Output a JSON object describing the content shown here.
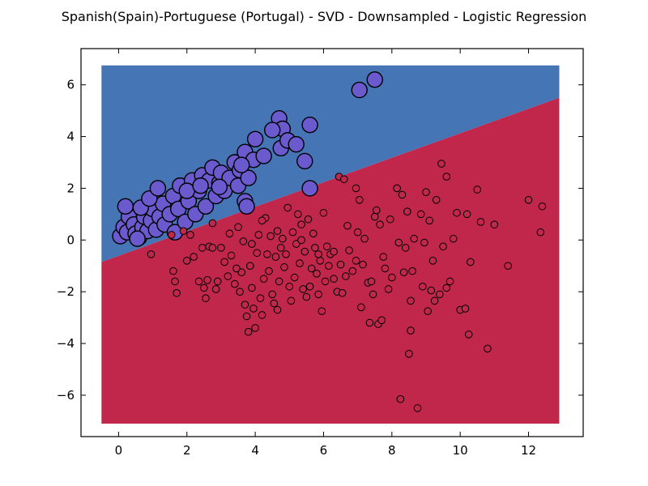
{
  "chart_data": {
    "type": "scatter",
    "title": "Spanish(Spain)-Portuguese (Portugal) - SVD - Downsampled - Logistic Regression",
    "xlabel": "",
    "ylabel": "",
    "xlim": [
      -1.1,
      13.6
    ],
    "ylim": [
      -7.6,
      7.4
    ],
    "xticks": [
      0,
      2,
      4,
      6,
      8,
      10,
      12
    ],
    "yticks": [
      -6,
      -4,
      -2,
      0,
      2,
      4,
      6
    ],
    "grid": false,
    "legend": "none",
    "decision_region": {
      "x_range": [
        -0.5,
        12.9
      ],
      "y_range": [
        -7.1,
        6.75
      ],
      "boundary": {
        "x1": -0.5,
        "y1": -0.85,
        "x2": 12.9,
        "y2": 5.5
      },
      "above_color": "#4575b4",
      "below_color": "#c1264b"
    },
    "series": [
      {
        "class": "portuguese",
        "color": "#6a5acd",
        "points": [
          [
            0.05,
            0.15
          ],
          [
            0.15,
            0.5
          ],
          [
            0.25,
            0.3
          ],
          [
            0.3,
            0.9
          ],
          [
            0.45,
            0.6
          ],
          [
            0.5,
            0.25
          ],
          [
            0.6,
            0.1
          ],
          [
            0.7,
            0.5
          ],
          [
            0.75,
            0.9
          ],
          [
            0.85,
            0.35
          ],
          [
            0.95,
            0.75
          ],
          [
            1.0,
            1.2
          ],
          [
            1.1,
            0.4
          ],
          [
            1.2,
            0.9
          ],
          [
            1.3,
            1.4
          ],
          [
            1.35,
            0.6
          ],
          [
            1.5,
            1.0
          ],
          [
            1.6,
            1.7
          ],
          [
            1.65,
            0.3
          ],
          [
            1.75,
            1.2
          ],
          [
            1.8,
            2.1
          ],
          [
            1.95,
            0.7
          ],
          [
            2.05,
            1.5
          ],
          [
            2.15,
            2.3
          ],
          [
            2.25,
            1.0
          ],
          [
            2.35,
            1.9
          ],
          [
            2.45,
            2.5
          ],
          [
            2.55,
            1.3
          ],
          [
            2.65,
            2.3
          ],
          [
            2.75,
            2.8
          ],
          [
            2.85,
            1.7
          ],
          [
            2.95,
            2.2
          ],
          [
            3.0,
            2.6
          ],
          [
            3.1,
            1.9
          ],
          [
            3.25,
            2.4
          ],
          [
            3.4,
            3.0
          ],
          [
            3.5,
            2.1
          ],
          [
            3.55,
            2.7
          ],
          [
            3.7,
            3.4
          ],
          [
            3.8,
            2.4
          ],
          [
            3.95,
            3.1
          ],
          [
            4.0,
            3.9
          ],
          [
            4.25,
            3.25
          ],
          [
            4.7,
            4.7
          ],
          [
            4.75,
            3.55
          ],
          [
            4.8,
            4.3
          ],
          [
            4.95,
            3.85
          ],
          [
            5.2,
            3.7
          ],
          [
            5.45,
            3.05
          ],
          [
            5.6,
            4.45
          ],
          [
            5.6,
            2.0
          ],
          [
            3.7,
            1.5
          ],
          [
            3.75,
            1.3
          ],
          [
            0.65,
            1.25
          ],
          [
            0.9,
            1.6
          ],
          [
            1.15,
            2.0
          ],
          [
            0.2,
            1.3
          ],
          [
            0.55,
            0.05
          ],
          [
            2.0,
            1.9
          ],
          [
            2.4,
            2.1
          ],
          [
            2.95,
            2.05
          ],
          [
            3.6,
            2.9
          ],
          [
            4.5,
            4.25
          ],
          [
            7.05,
            5.8
          ],
          [
            7.5,
            6.2
          ]
        ]
      },
      {
        "class": "spanish",
        "color": "#c1264b",
        "points": [
          [
            0.95,
            -0.55
          ],
          [
            1.55,
            0.2
          ],
          [
            1.6,
            -1.2
          ],
          [
            1.65,
            -1.6
          ],
          [
            1.7,
            -2.05
          ],
          [
            1.9,
            0.35
          ],
          [
            2.0,
            -0.8
          ],
          [
            2.1,
            0.2
          ],
          [
            2.2,
            -0.65
          ],
          [
            2.35,
            -1.6
          ],
          [
            2.45,
            -0.3
          ],
          [
            2.5,
            -1.85
          ],
          [
            2.55,
            -2.25
          ],
          [
            2.6,
            -1.55
          ],
          [
            2.65,
            -0.25
          ],
          [
            2.75,
            0.65
          ],
          [
            2.85,
            -1.9
          ],
          [
            2.9,
            -1.6
          ],
          [
            3.0,
            -0.3
          ],
          [
            3.1,
            -0.85
          ],
          [
            3.2,
            -1.4
          ],
          [
            3.3,
            -0.6
          ],
          [
            3.4,
            -1.7
          ],
          [
            3.5,
            0.5
          ],
          [
            3.55,
            -2.0
          ],
          [
            3.6,
            -1.25
          ],
          [
            3.65,
            -0.05
          ],
          [
            3.7,
            -2.5
          ],
          [
            3.75,
            -2.95
          ],
          [
            3.8,
            -3.55
          ],
          [
            3.85,
            -1.0
          ],
          [
            3.9,
            -0.15
          ],
          [
            3.95,
            -2.65
          ],
          [
            4.0,
            -3.4
          ],
          [
            4.05,
            -0.5
          ],
          [
            4.1,
            0.2
          ],
          [
            4.15,
            -2.25
          ],
          [
            4.2,
            -2.9
          ],
          [
            4.25,
            -1.5
          ],
          [
            4.3,
            0.85
          ],
          [
            4.35,
            -0.55
          ],
          [
            4.4,
            -1.2
          ],
          [
            4.45,
            0.15
          ],
          [
            4.5,
            -2.1
          ],
          [
            4.55,
            -2.45
          ],
          [
            4.6,
            -0.65
          ],
          [
            4.65,
            -2.7
          ],
          [
            4.7,
            -1.6
          ],
          [
            4.75,
            -0.3
          ],
          [
            4.8,
            0.05
          ],
          [
            4.85,
            -1.05
          ],
          [
            4.9,
            -0.55
          ],
          [
            4.95,
            1.25
          ],
          [
            5.0,
            -1.8
          ],
          [
            5.05,
            -2.35
          ],
          [
            5.1,
            0.3
          ],
          [
            5.15,
            -1.45
          ],
          [
            5.2,
            -0.15
          ],
          [
            5.25,
            1.0
          ],
          [
            5.3,
            -0.9
          ],
          [
            5.35,
            0.6
          ],
          [
            5.4,
            -1.9
          ],
          [
            5.45,
            -0.45
          ],
          [
            5.5,
            -2.2
          ],
          [
            5.55,
            0.8
          ],
          [
            5.6,
            -1.8
          ],
          [
            5.65,
            -1.1
          ],
          [
            5.7,
            0.25
          ],
          [
            5.75,
            -0.3
          ],
          [
            5.8,
            -1.3
          ],
          [
            5.85,
            -2.1
          ],
          [
            5.9,
            -0.8
          ],
          [
            5.95,
            -2.75
          ],
          [
            6.0,
            1.05
          ],
          [
            6.05,
            -1.6
          ],
          [
            6.1,
            -0.25
          ],
          [
            6.15,
            -1.0
          ],
          [
            6.2,
            -0.55
          ],
          [
            6.3,
            -1.5
          ],
          [
            6.4,
            -2.0
          ],
          [
            6.45,
            2.45
          ],
          [
            6.5,
            -0.95
          ],
          [
            6.55,
            -2.05
          ],
          [
            6.6,
            2.35
          ],
          [
            6.65,
            -1.4
          ],
          [
            6.7,
            0.55
          ],
          [
            6.75,
            -0.4
          ],
          [
            6.85,
            -1.2
          ],
          [
            6.95,
            -0.8
          ],
          [
            7.0,
            0.3
          ],
          [
            7.05,
            1.55
          ],
          [
            7.1,
            -2.6
          ],
          [
            7.15,
            -0.95
          ],
          [
            7.2,
            0.05
          ],
          [
            7.3,
            -1.65
          ],
          [
            7.35,
            -3.2
          ],
          [
            7.4,
            -1.6
          ],
          [
            7.45,
            -2.1
          ],
          [
            7.5,
            0.9
          ],
          [
            7.55,
            1.15
          ],
          [
            7.6,
            -3.25
          ],
          [
            7.65,
            0.6
          ],
          [
            7.7,
            -3.1
          ],
          [
            7.75,
            -0.65
          ],
          [
            7.8,
            -1.1
          ],
          [
            7.9,
            -1.9
          ],
          [
            8.0,
            -1.45
          ],
          [
            8.15,
            2.0
          ],
          [
            8.2,
            -0.1
          ],
          [
            8.25,
            -6.15
          ],
          [
            8.3,
            1.75
          ],
          [
            8.35,
            -1.25
          ],
          [
            8.4,
            -0.3
          ],
          [
            8.45,
            1.1
          ],
          [
            8.5,
            -4.4
          ],
          [
            8.55,
            -3.5
          ],
          [
            8.6,
            -1.2
          ],
          [
            8.65,
            0.05
          ],
          [
            8.75,
            -6.5
          ],
          [
            8.85,
            1.0
          ],
          [
            8.9,
            -1.8
          ],
          [
            8.95,
            -0.1
          ],
          [
            9.0,
            1.85
          ],
          [
            9.05,
            -2.75
          ],
          [
            9.1,
            0.75
          ],
          [
            9.15,
            -1.95
          ],
          [
            9.2,
            -0.8
          ],
          [
            9.3,
            1.55
          ],
          [
            9.4,
            -2.1
          ],
          [
            9.45,
            2.95
          ],
          [
            9.5,
            -0.25
          ],
          [
            9.6,
            2.45
          ],
          [
            9.7,
            -1.6
          ],
          [
            9.8,
            0.05
          ],
          [
            9.9,
            1.05
          ],
          [
            10.0,
            -2.7
          ],
          [
            10.2,
            1.0
          ],
          [
            10.25,
            -3.65
          ],
          [
            10.3,
            -0.85
          ],
          [
            10.5,
            1.95
          ],
          [
            10.6,
            0.7
          ],
          [
            10.8,
            -4.2
          ],
          [
            11.0,
            0.6
          ],
          [
            11.4,
            -1.0
          ],
          [
            12.0,
            1.55
          ],
          [
            12.35,
            0.3
          ],
          [
            12.4,
            1.3
          ],
          [
            10.15,
            -2.65
          ],
          [
            9.25,
            -2.35
          ],
          [
            6.95,
            2.0
          ],
          [
            5.35,
            0.0
          ],
          [
            4.2,
            0.75
          ],
          [
            3.25,
            0.25
          ],
          [
            2.75,
            -0.3
          ],
          [
            3.45,
            -1.1
          ],
          [
            6.3,
            -0.45
          ],
          [
            7.95,
            0.8
          ],
          [
            8.55,
            -2.35
          ],
          [
            9.6,
            -1.85
          ],
          [
            5.85,
            -0.55
          ],
          [
            4.65,
            0.35
          ],
          [
            3.9,
            -1.85
          ]
        ]
      }
    ]
  }
}
